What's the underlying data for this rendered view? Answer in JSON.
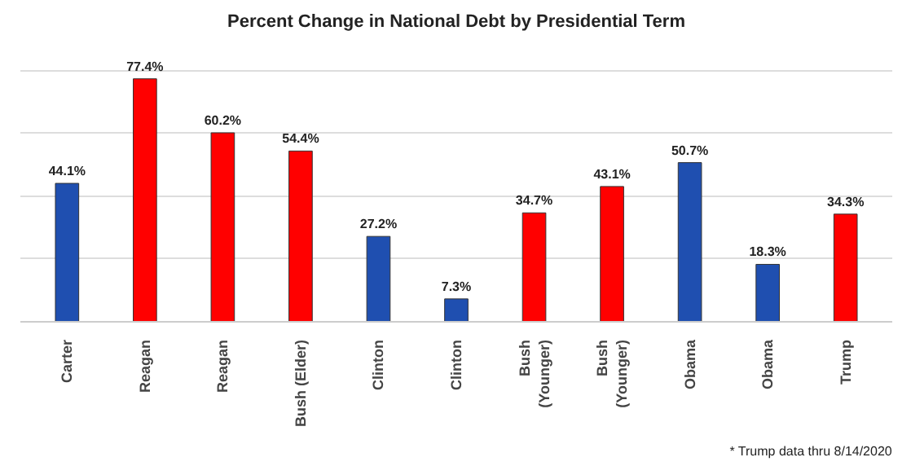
{
  "chart_data": {
    "type": "bar",
    "title": "Percent Change in National Debt by Presidential Term",
    "categories": [
      "Carter",
      "Reagan",
      "Reagan",
      "Bush (Elder)",
      "Clinton",
      "Clinton",
      "Bush (Younger)",
      "Bush (Younger)",
      "Obama",
      "Obama",
      "Trump"
    ],
    "values": [
      44.1,
      77.4,
      60.2,
      54.4,
      27.2,
      7.3,
      34.7,
      43.1,
      50.7,
      18.3,
      34.3
    ],
    "value_labels": [
      "44.1%",
      "77.4%",
      "60.2%",
      "54.4%",
      "27.2%",
      "7.3%",
      "34.7%",
      "43.1%",
      "50.7%",
      "18.3%",
      "34.3%"
    ],
    "colors": [
      "#1f4fb0",
      "#ff0000",
      "#ff0000",
      "#ff0000",
      "#1f4fb0",
      "#1f4fb0",
      "#ff0000",
      "#ff0000",
      "#1f4fb0",
      "#1f4fb0",
      "#ff0000"
    ],
    "grid": "y",
    "annotations": [
      "* Trump data thru 8/14/2020"
    ]
  }
}
